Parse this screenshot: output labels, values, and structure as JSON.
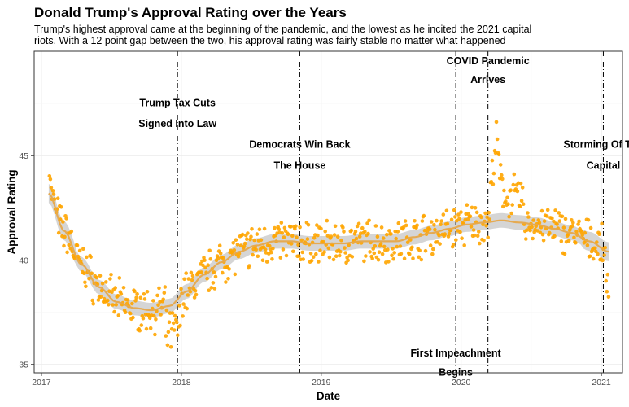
{
  "chart_data": {
    "type": "scatter",
    "title": "Donald Trump's Approval Rating over the Years",
    "subtitle_lines": [
      "Trump's highest approval came at the beginning of the pandemic, and the lowest as he incited the 2021 capital",
      "riots. With a 12 point gap between the two, his approval rating was fairly stable no matter what happened"
    ],
    "xlabel": "Date",
    "ylabel": "Approval Rating",
    "xlim": [
      "2016-12-13",
      "2021-02-25"
    ],
    "ylim": [
      34.6,
      50.0
    ],
    "x_ticks": [
      "2017",
      "2018",
      "2019",
      "2020",
      "2021"
    ],
    "y_ticks": [
      35,
      40,
      45
    ],
    "grid": true,
    "point_color": "#FFA500",
    "smooth_color": "#E6A84B",
    "band_color": "#B3B3B3",
    "events": [
      {
        "date": "2017-12-22",
        "label_lines": [
          "Trump Tax Cuts",
          "Signed Into Law"
        ],
        "label_y": [
          47.5,
          46.5
        ]
      },
      {
        "date": "2018-11-06",
        "label_lines": [
          "Democrats Win Back",
          "The House"
        ],
        "label_y": [
          45.5,
          44.5
        ]
      },
      {
        "date": "2019-12-18",
        "label_lines": [
          "First Impeachment",
          "Begins"
        ],
        "label_y": [
          35.5,
          34.6
        ]
      },
      {
        "date": "2020-03-11",
        "label_lines": [
          "COVID Pandemic",
          "Arrives"
        ],
        "label_y": [
          49.5,
          48.6
        ]
      },
      {
        "date": "2021-01-06",
        "label_lines": [
          "Storming Of The",
          "Capital"
        ],
        "label_y": [
          45.5,
          44.5
        ]
      }
    ],
    "trend": [
      [
        "2017-01-20",
        43.2
      ],
      [
        "2017-03-01",
        41.4
      ],
      [
        "2017-04-15",
        39.8
      ],
      [
        "2017-06-01",
        38.7
      ],
      [
        "2017-07-15",
        38.0
      ],
      [
        "2017-09-01",
        37.7
      ],
      [
        "2017-10-15",
        37.6
      ],
      [
        "2017-12-01",
        37.8
      ],
      [
        "2018-01-15",
        38.5
      ],
      [
        "2018-03-01",
        39.3
      ],
      [
        "2018-04-15",
        39.9
      ],
      [
        "2018-06-01",
        40.4
      ],
      [
        "2018-07-15",
        40.7
      ],
      [
        "2018-09-01",
        40.9
      ],
      [
        "2018-10-15",
        40.9
      ],
      [
        "2018-12-01",
        40.8
      ],
      [
        "2019-01-15",
        40.8
      ],
      [
        "2019-03-01",
        40.8
      ],
      [
        "2019-04-15",
        40.9
      ],
      [
        "2019-06-01",
        40.9
      ],
      [
        "2019-07-15",
        40.9
      ],
      [
        "2019-09-01",
        41.1
      ],
      [
        "2019-10-15",
        41.3
      ],
      [
        "2019-12-01",
        41.5
      ],
      [
        "2020-01-15",
        41.7
      ],
      [
        "2020-03-01",
        41.8
      ],
      [
        "2020-04-15",
        41.9
      ],
      [
        "2020-06-01",
        41.8
      ],
      [
        "2020-07-15",
        41.7
      ],
      [
        "2020-09-01",
        41.5
      ],
      [
        "2020-10-15",
        41.3
      ],
      [
        "2020-12-01",
        40.9
      ],
      [
        "2021-01-20",
        40.4
      ]
    ]
  }
}
